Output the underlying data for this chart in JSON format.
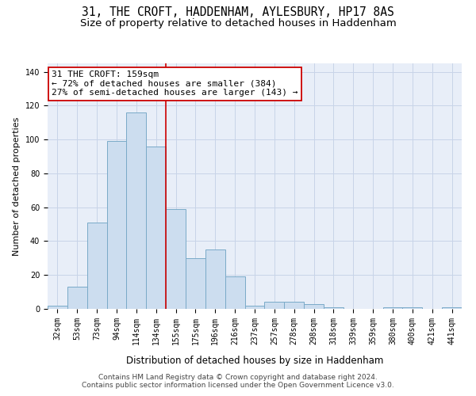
{
  "title1": "31, THE CROFT, HADDENHAM, AYLESBURY, HP17 8AS",
  "title2": "Size of property relative to detached houses in Haddenham",
  "xlabel": "Distribution of detached houses by size in Haddenham",
  "ylabel": "Number of detached properties",
  "categories": [
    "32sqm",
    "53sqm",
    "73sqm",
    "94sqm",
    "114sqm",
    "134sqm",
    "155sqm",
    "175sqm",
    "196sqm",
    "216sqm",
    "237sqm",
    "257sqm",
    "278sqm",
    "298sqm",
    "318sqm",
    "339sqm",
    "359sqm",
    "380sqm",
    "400sqm",
    "421sqm",
    "441sqm"
  ],
  "values": [
    2,
    13,
    51,
    99,
    116,
    96,
    59,
    30,
    35,
    19,
    2,
    4,
    4,
    3,
    1,
    0,
    0,
    1,
    1,
    0,
    1
  ],
  "bar_color": "#ccddef",
  "bar_edge_color": "#7aaac8",
  "bar_linewidth": 0.7,
  "vline_color": "#cc0000",
  "vline_x_index": 6,
  "annotation_line1": "31 THE CROFT: 159sqm",
  "annotation_line2": "← 72% of detached houses are smaller (384)",
  "annotation_line3": "27% of semi-detached houses are larger (143) →",
  "box_edge_color": "#cc0000",
  "ylim": [
    0,
    145
  ],
  "yticks": [
    0,
    20,
    40,
    60,
    80,
    100,
    120,
    140
  ],
  "grid_color": "#c8d4e8",
  "bg_color": "#e8eef8",
  "footer1": "Contains HM Land Registry data © Crown copyright and database right 2024.",
  "footer2": "Contains public sector information licensed under the Open Government Licence v3.0.",
  "title1_fontsize": 10.5,
  "title2_fontsize": 9.5,
  "xlabel_fontsize": 8.5,
  "ylabel_fontsize": 8,
  "tick_fontsize": 7,
  "annotation_fontsize": 8,
  "footer_fontsize": 6.5
}
